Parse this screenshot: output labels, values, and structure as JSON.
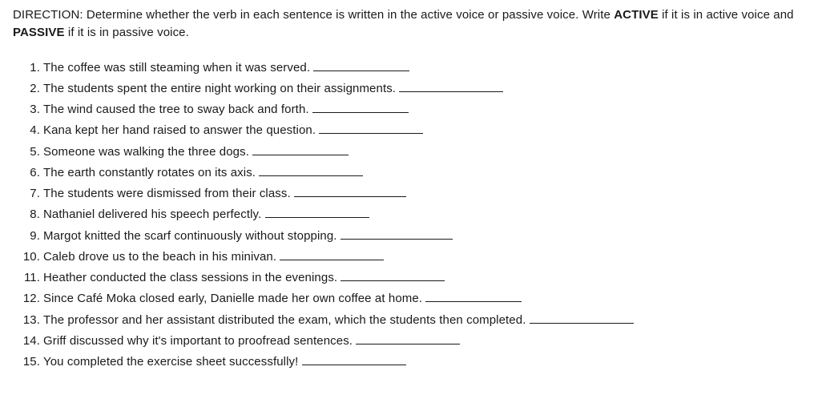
{
  "direction": {
    "prefix": "DIRECTION: Determine whether the verb in each sentence is written in the active voice or passive voice. Write ",
    "active_label": "ACTIVE",
    "mid": " if it is in active voice and ",
    "passive_label": "PASSIVE",
    "suffix": " if it is in passive voice."
  },
  "items": [
    {
      "text": "The coffee was still steaming when it was served. ",
      "blank_width": 120
    },
    {
      "text": "The students spent the entire night working on their assignments. ",
      "blank_width": 130
    },
    {
      "text": "The wind caused the tree to sway back and forth. ",
      "blank_width": 120
    },
    {
      "text": "Kana kept her hand raised to answer the question. ",
      "blank_width": 130
    },
    {
      "text": "Someone was walking the three dogs. ",
      "blank_width": 120
    },
    {
      "text": "The earth constantly rotates on its axis. ",
      "blank_width": 130
    },
    {
      "text": "The students were dismissed from their class. ",
      "blank_width": 140
    },
    {
      "text": "Nathaniel delivered his speech perfectly. ",
      "blank_width": 130
    },
    {
      "text": "Margot knitted the scarf continuously without stopping. ",
      "blank_width": 140
    },
    {
      "text": "Caleb drove us to the beach in his minivan. ",
      "blank_width": 130
    },
    {
      "text": "Heather conducted the class sessions in the evenings. ",
      "blank_width": 130
    },
    {
      "text": "Since Café Moka closed early, Danielle made her own coffee at home. ",
      "blank_width": 120
    },
    {
      "text": "The professor and her assistant distributed the exam, which the students then completed. ",
      "blank_width": 130
    },
    {
      "text": "Griff discussed why it's important to proofread sentences. ",
      "blank_width": 130
    },
    {
      "text": "You completed the exercise sheet successfully! ",
      "blank_width": 130
    }
  ],
  "colors": {
    "text": "#1a1a1a",
    "background": "#ffffff"
  }
}
